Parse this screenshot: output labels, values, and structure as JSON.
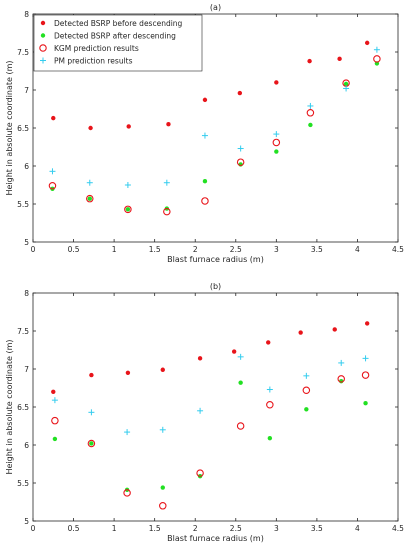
{
  "colors": {
    "red": "#e8141a",
    "green": "#22e022",
    "cyan": "#33ccee",
    "axis": "#262626"
  },
  "chart_data": [
    {
      "type": "scatter",
      "title": "(a)",
      "xlabel": "Blast furnace radius (m)",
      "ylabel": "Height in absolute coordinate (m)",
      "xlim": [
        0,
        4.5
      ],
      "ylim": [
        5,
        8
      ],
      "xticks": [
        "0",
        "0.5",
        "1",
        "1.5",
        "2",
        "2.5",
        "3",
        "3.5",
        "4",
        "4.5"
      ],
      "yticks": [
        "5",
        "5.5",
        "6",
        "6.5",
        "7",
        "7.5",
        "8"
      ],
      "grid": false,
      "legend": "top-left",
      "series": [
        {
          "name": "Detected BSRP before descending",
          "marker": "dot",
          "color": "#e8141a",
          "x": [
            0.25,
            0.71,
            1.18,
            1.67,
            2.12,
            2.55,
            3.0,
            3.41,
            3.78,
            4.12
          ],
          "y": [
            6.63,
            6.5,
            6.52,
            6.55,
            6.87,
            6.96,
            7.1,
            7.38,
            7.41,
            7.62
          ]
        },
        {
          "name": "Detected BSRP after descending",
          "marker": "dot",
          "color": "#22e022",
          "x": [
            0.24,
            0.7,
            1.17,
            1.65,
            2.12,
            2.56,
            3.0,
            3.42,
            3.86,
            4.24
          ],
          "y": [
            5.7,
            5.57,
            5.43,
            5.44,
            5.8,
            6.02,
            6.19,
            6.54,
            7.08,
            7.35
          ]
        },
        {
          "name": "KGM prediction results",
          "marker": "circle",
          "color": "#e8141a",
          "x": [
            0.24,
            0.7,
            1.17,
            1.65,
            2.12,
            2.56,
            3.0,
            3.42,
            3.86,
            4.24
          ],
          "y": [
            5.74,
            5.57,
            5.43,
            5.4,
            5.54,
            6.05,
            6.31,
            6.7,
            7.09,
            7.41
          ]
        },
        {
          "name": "PM prediction results",
          "marker": "plus",
          "color": "#33ccee",
          "x": [
            0.24,
            0.7,
            1.17,
            1.65,
            2.12,
            2.56,
            3.0,
            3.42,
            3.86,
            4.24
          ],
          "y": [
            5.93,
            5.78,
            5.75,
            5.78,
            6.4,
            6.23,
            6.42,
            6.79,
            7.02,
            7.53
          ]
        }
      ]
    },
    {
      "type": "scatter",
      "title": "(b)",
      "xlabel": "Blast furnace radius (m)",
      "ylabel": "Height in absolute coordinate (m)",
      "xlim": [
        0,
        4.5
      ],
      "ylim": [
        5,
        8
      ],
      "xticks": [
        "0",
        "0.5",
        "1",
        "1.5",
        "2",
        "2.5",
        "3",
        "3.5",
        "4",
        "4.5"
      ],
      "yticks": [
        "5",
        "5.5",
        "6",
        "6.5",
        "7",
        "7.5",
        "8"
      ],
      "grid": false,
      "series": [
        {
          "name": "Detected BSRP before descending",
          "marker": "dot",
          "color": "#e8141a",
          "x": [
            0.25,
            0.72,
            1.17,
            1.6,
            2.06,
            2.48,
            2.9,
            3.3,
            3.72,
            4.12
          ],
          "y": [
            6.7,
            6.92,
            6.95,
            6.99,
            7.14,
            7.23,
            7.35,
            7.48,
            7.52,
            7.6
          ]
        },
        {
          "name": "Detected BSRP after descending",
          "marker": "dot",
          "color": "#22e022",
          "x": [
            0.27,
            0.72,
            1.16,
            1.6,
            2.06,
            2.56,
            2.92,
            3.37,
            3.8,
            4.1
          ],
          "y": [
            6.08,
            6.02,
            5.41,
            5.44,
            5.59,
            6.82,
            6.09,
            6.47,
            6.84,
            6.55
          ]
        },
        {
          "name": "KGM prediction results",
          "marker": "circle",
          "color": "#e8141a",
          "x": [
            0.27,
            0.72,
            1.16,
            1.6,
            2.06,
            2.56,
            2.92,
            3.37,
            3.8,
            4.1
          ],
          "y": [
            6.32,
            6.02,
            5.37,
            5.2,
            5.63,
            6.25,
            6.53,
            6.72,
            6.87,
            6.92
          ]
        },
        {
          "name": "PM prediction results",
          "marker": "plus",
          "color": "#33ccee",
          "x": [
            0.27,
            0.72,
            1.16,
            1.6,
            2.06,
            2.56,
            2.92,
            3.37,
            3.8,
            4.1
          ],
          "y": [
            6.59,
            6.43,
            6.17,
            6.2,
            6.45,
            7.16,
            6.73,
            6.91,
            7.08,
            7.14
          ]
        }
      ]
    }
  ]
}
